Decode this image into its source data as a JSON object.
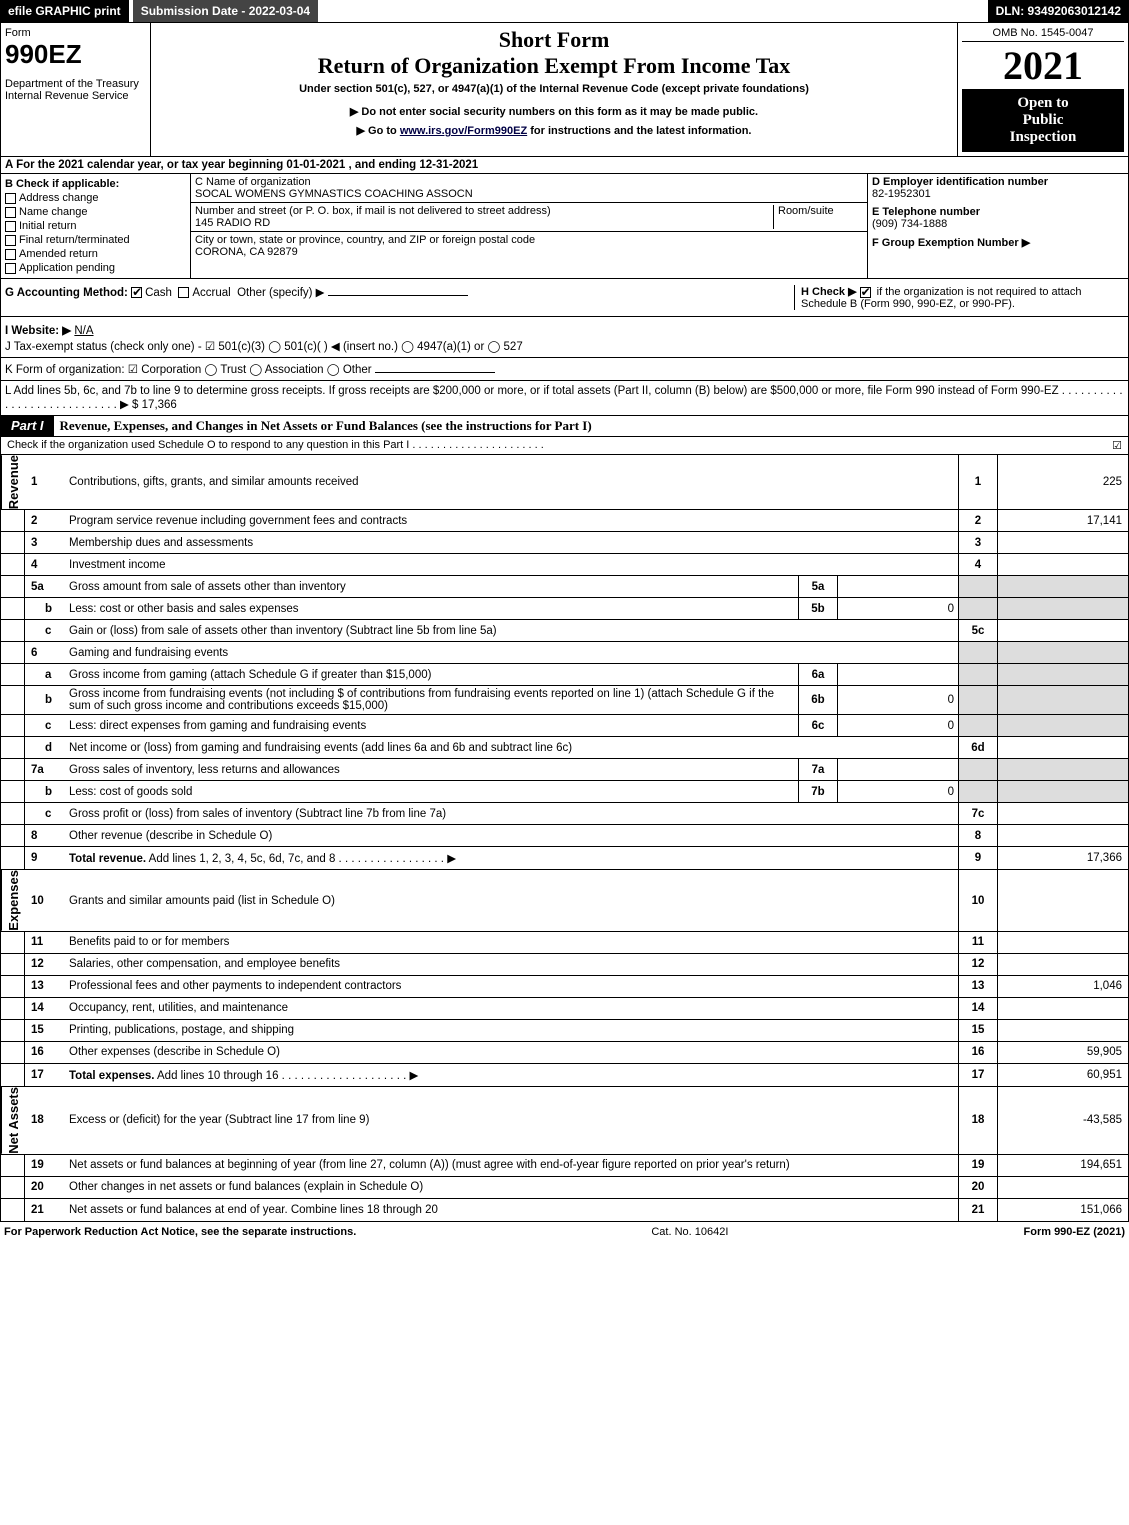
{
  "topbar": {
    "efile": "efile GRAPHIC print",
    "submission": "Submission Date - 2022-03-04",
    "dln": "DLN: 93492063012142"
  },
  "header": {
    "form_label": "Form",
    "form_num": "990EZ",
    "dept": "Department of the Treasury\nInternal Revenue Service",
    "short_form": "Short Form",
    "return_title": "Return of Organization Exempt From Income Tax",
    "under_section": "Under section 501(c), 527, or 4947(a)(1) of the Internal Revenue Code (except private foundations)",
    "do_not": "▶ Do not enter social security numbers on this form as it may be made public.",
    "goto_pre": "▶ Go to ",
    "goto_link": "www.irs.gov/Form990EZ",
    "goto_post": " for instructions and the latest information.",
    "omb": "OMB No. 1545-0047",
    "year": "2021",
    "open1": "Open to",
    "open2": "Public",
    "open3": "Inspection"
  },
  "row_a": "A  For the 2021 calendar year, or tax year beginning 01-01-2021 , and ending 12-31-2021",
  "section_b": {
    "title": "B  Check if applicable:",
    "opts": [
      "Address change",
      "Name change",
      "Initial return",
      "Final return/terminated",
      "Amended return",
      "Application pending"
    ]
  },
  "section_c": {
    "c_label": "C Name of organization",
    "org_name": "SOCAL WOMENS GYMNASTICS COACHING ASSOCN",
    "addr_label": "Number and street (or P. O. box, if mail is not delivered to street address)",
    "room_label": "Room/suite",
    "addr": "145 RADIO RD",
    "city_label": "City or town, state or province, country, and ZIP or foreign postal code",
    "city": "CORONA, CA  92879"
  },
  "section_def": {
    "d_label": "D Employer identification number",
    "ein": "82-1952301",
    "e_label": "E Telephone number",
    "phone": "(909) 734-1888",
    "f_label": "F Group Exemption Number  ▶"
  },
  "row_g": {
    "g": "G Accounting Method:",
    "cash": "Cash",
    "accrual": "Accrual",
    "other": "Other (specify) ▶",
    "h": "H  Check ▶",
    "h_rest": " if the organization is not required to attach Schedule B (Form 990, 990-EZ, or 990-PF)."
  },
  "row_ijk": {
    "i_label": "I Website: ▶",
    "i_val": "N/A",
    "j": "J Tax-exempt status (check only one) -  ☑ 501(c)(3)  ◯ 501(c)(  ) ◀ (insert no.)  ◯ 4947(a)(1) or  ◯ 527",
    "k": "K Form of organization:   ☑ Corporation   ◯ Trust   ◯ Association   ◯ Other"
  },
  "row_l": {
    "text": "L Add lines 5b, 6c, and 7b to line 9 to determine gross receipts. If gross receipts are $200,000 or more, or if total assets (Part II, column (B) below) are $500,000 or more, file Form 990 instead of Form 990-EZ  .  .  .  .  .  .  .  .  .  .  .  .  .  .  .  .  .  .  .  .  .  .  .  .  .  .  .  . ▶ $ ",
    "val": "17,366"
  },
  "part1": {
    "tab": "Part I",
    "title": "Revenue, Expenses, and Changes in Net Assets or Fund Balances (see the instructions for Part I)",
    "sub": "Check if the organization used Schedule O to respond to any question in this Part I  .  .  .  .  .  .  .  .  .  .  .  .  .  .  .  .  .  .  .  .  .  .",
    "chk": "☑"
  },
  "vtabs": {
    "revenue": "Revenue",
    "expenses": "Expenses",
    "netassets": "Net Assets"
  },
  "lines": [
    {
      "n": "1",
      "d": "Contributions, gifts, grants, and similar amounts received",
      "rn": "1",
      "rv": "225"
    },
    {
      "n": "2",
      "d": "Program service revenue including government fees and contracts",
      "rn": "2",
      "rv": "17,141"
    },
    {
      "n": "3",
      "d": "Membership dues and assessments",
      "rn": "3",
      "rv": ""
    },
    {
      "n": "4",
      "d": "Investment income",
      "rn": "4",
      "rv": ""
    },
    {
      "n": "5a",
      "d": "Gross amount from sale of assets other than inventory",
      "in": "5a",
      "iv": "",
      "shade_r": true
    },
    {
      "n": "b",
      "sub": true,
      "d": "Less: cost or other basis and sales expenses",
      "in": "5b",
      "iv": "0",
      "shade_r": true
    },
    {
      "n": "c",
      "sub": true,
      "d": "Gain or (loss) from sale of assets other than inventory (Subtract line 5b from line 5a)",
      "rn": "5c",
      "rv": ""
    },
    {
      "n": "6",
      "d": "Gaming and fundraising events",
      "shade_r": true,
      "shade_rn": true
    },
    {
      "n": "a",
      "sub": true,
      "d": "Gross income from gaming (attach Schedule G if greater than $15,000)",
      "in": "6a",
      "iv": "",
      "shade_r": true
    },
    {
      "n": "b",
      "sub": true,
      "d": "Gross income from fundraising events (not including $                    of contributions from fundraising events reported on line 1) (attach Schedule G if the sum of such gross income and contributions exceeds $15,000)",
      "in": "6b",
      "iv": "0",
      "shade_r": true
    },
    {
      "n": "c",
      "sub": true,
      "d": "Less: direct expenses from gaming and fundraising events",
      "in": "6c",
      "iv": "0",
      "shade_r": true
    },
    {
      "n": "d",
      "sub": true,
      "d": "Net income or (loss) from gaming and fundraising events (add lines 6a and 6b and subtract line 6c)",
      "rn": "6d",
      "rv": ""
    },
    {
      "n": "7a",
      "d": "Gross sales of inventory, less returns and allowances",
      "in": "7a",
      "iv": "",
      "shade_r": true
    },
    {
      "n": "b",
      "sub": true,
      "d": "Less: cost of goods sold",
      "in": "7b",
      "iv": "0",
      "shade_r": true
    },
    {
      "n": "c",
      "sub": true,
      "d": "Gross profit or (loss) from sales of inventory (Subtract line 7b from line 7a)",
      "rn": "7c",
      "rv": ""
    },
    {
      "n": "8",
      "d": "Other revenue (describe in Schedule O)",
      "rn": "8",
      "rv": ""
    },
    {
      "n": "9",
      "d": "Total revenue. Add lines 1, 2, 3, 4, 5c, 6d, 7c, and 8   .  .  .  .  .  .  .  .  .  .  .  .  .  .  .  .  . ▶",
      "rn": "9",
      "rv": "17,366",
      "bold": true
    }
  ],
  "exp_lines": [
    {
      "n": "10",
      "d": "Grants and similar amounts paid (list in Schedule O)",
      "rn": "10",
      "rv": ""
    },
    {
      "n": "11",
      "d": "Benefits paid to or for members",
      "rn": "11",
      "rv": ""
    },
    {
      "n": "12",
      "d": "Salaries, other compensation, and employee benefits",
      "rn": "12",
      "rv": ""
    },
    {
      "n": "13",
      "d": "Professional fees and other payments to independent contractors",
      "rn": "13",
      "rv": "1,046"
    },
    {
      "n": "14",
      "d": "Occupancy, rent, utilities, and maintenance",
      "rn": "14",
      "rv": ""
    },
    {
      "n": "15",
      "d": "Printing, publications, postage, and shipping",
      "rn": "15",
      "rv": ""
    },
    {
      "n": "16",
      "d": "Other expenses (describe in Schedule O)",
      "rn": "16",
      "rv": "59,905"
    },
    {
      "n": "17",
      "d": "Total expenses. Add lines 10 through 16   .  .  .  .  .  .  .  .  .  .  .  .  .  .  .  .  .  .  .  . ▶",
      "rn": "17",
      "rv": "60,951",
      "bold": true
    }
  ],
  "na_lines": [
    {
      "n": "18",
      "d": "Excess or (deficit) for the year (Subtract line 17 from line 9)",
      "rn": "18",
      "rv": "-43,585"
    },
    {
      "n": "19",
      "d": "Net assets or fund balances at beginning of year (from line 27, column (A)) (must agree with end-of-year figure reported on prior year's return)",
      "rn": "19",
      "rv": "194,651"
    },
    {
      "n": "20",
      "d": "Other changes in net assets or fund balances (explain in Schedule O)",
      "rn": "20",
      "rv": ""
    },
    {
      "n": "21",
      "d": "Net assets or fund balances at end of year. Combine lines 18 through 20",
      "rn": "21",
      "rv": "151,066"
    }
  ],
  "footer": {
    "left": "For Paperwork Reduction Act Notice, see the separate instructions.",
    "mid": "Cat. No. 10642I",
    "right_pre": "Form ",
    "right_b": "990-EZ",
    "right_post": " (2021)"
  }
}
